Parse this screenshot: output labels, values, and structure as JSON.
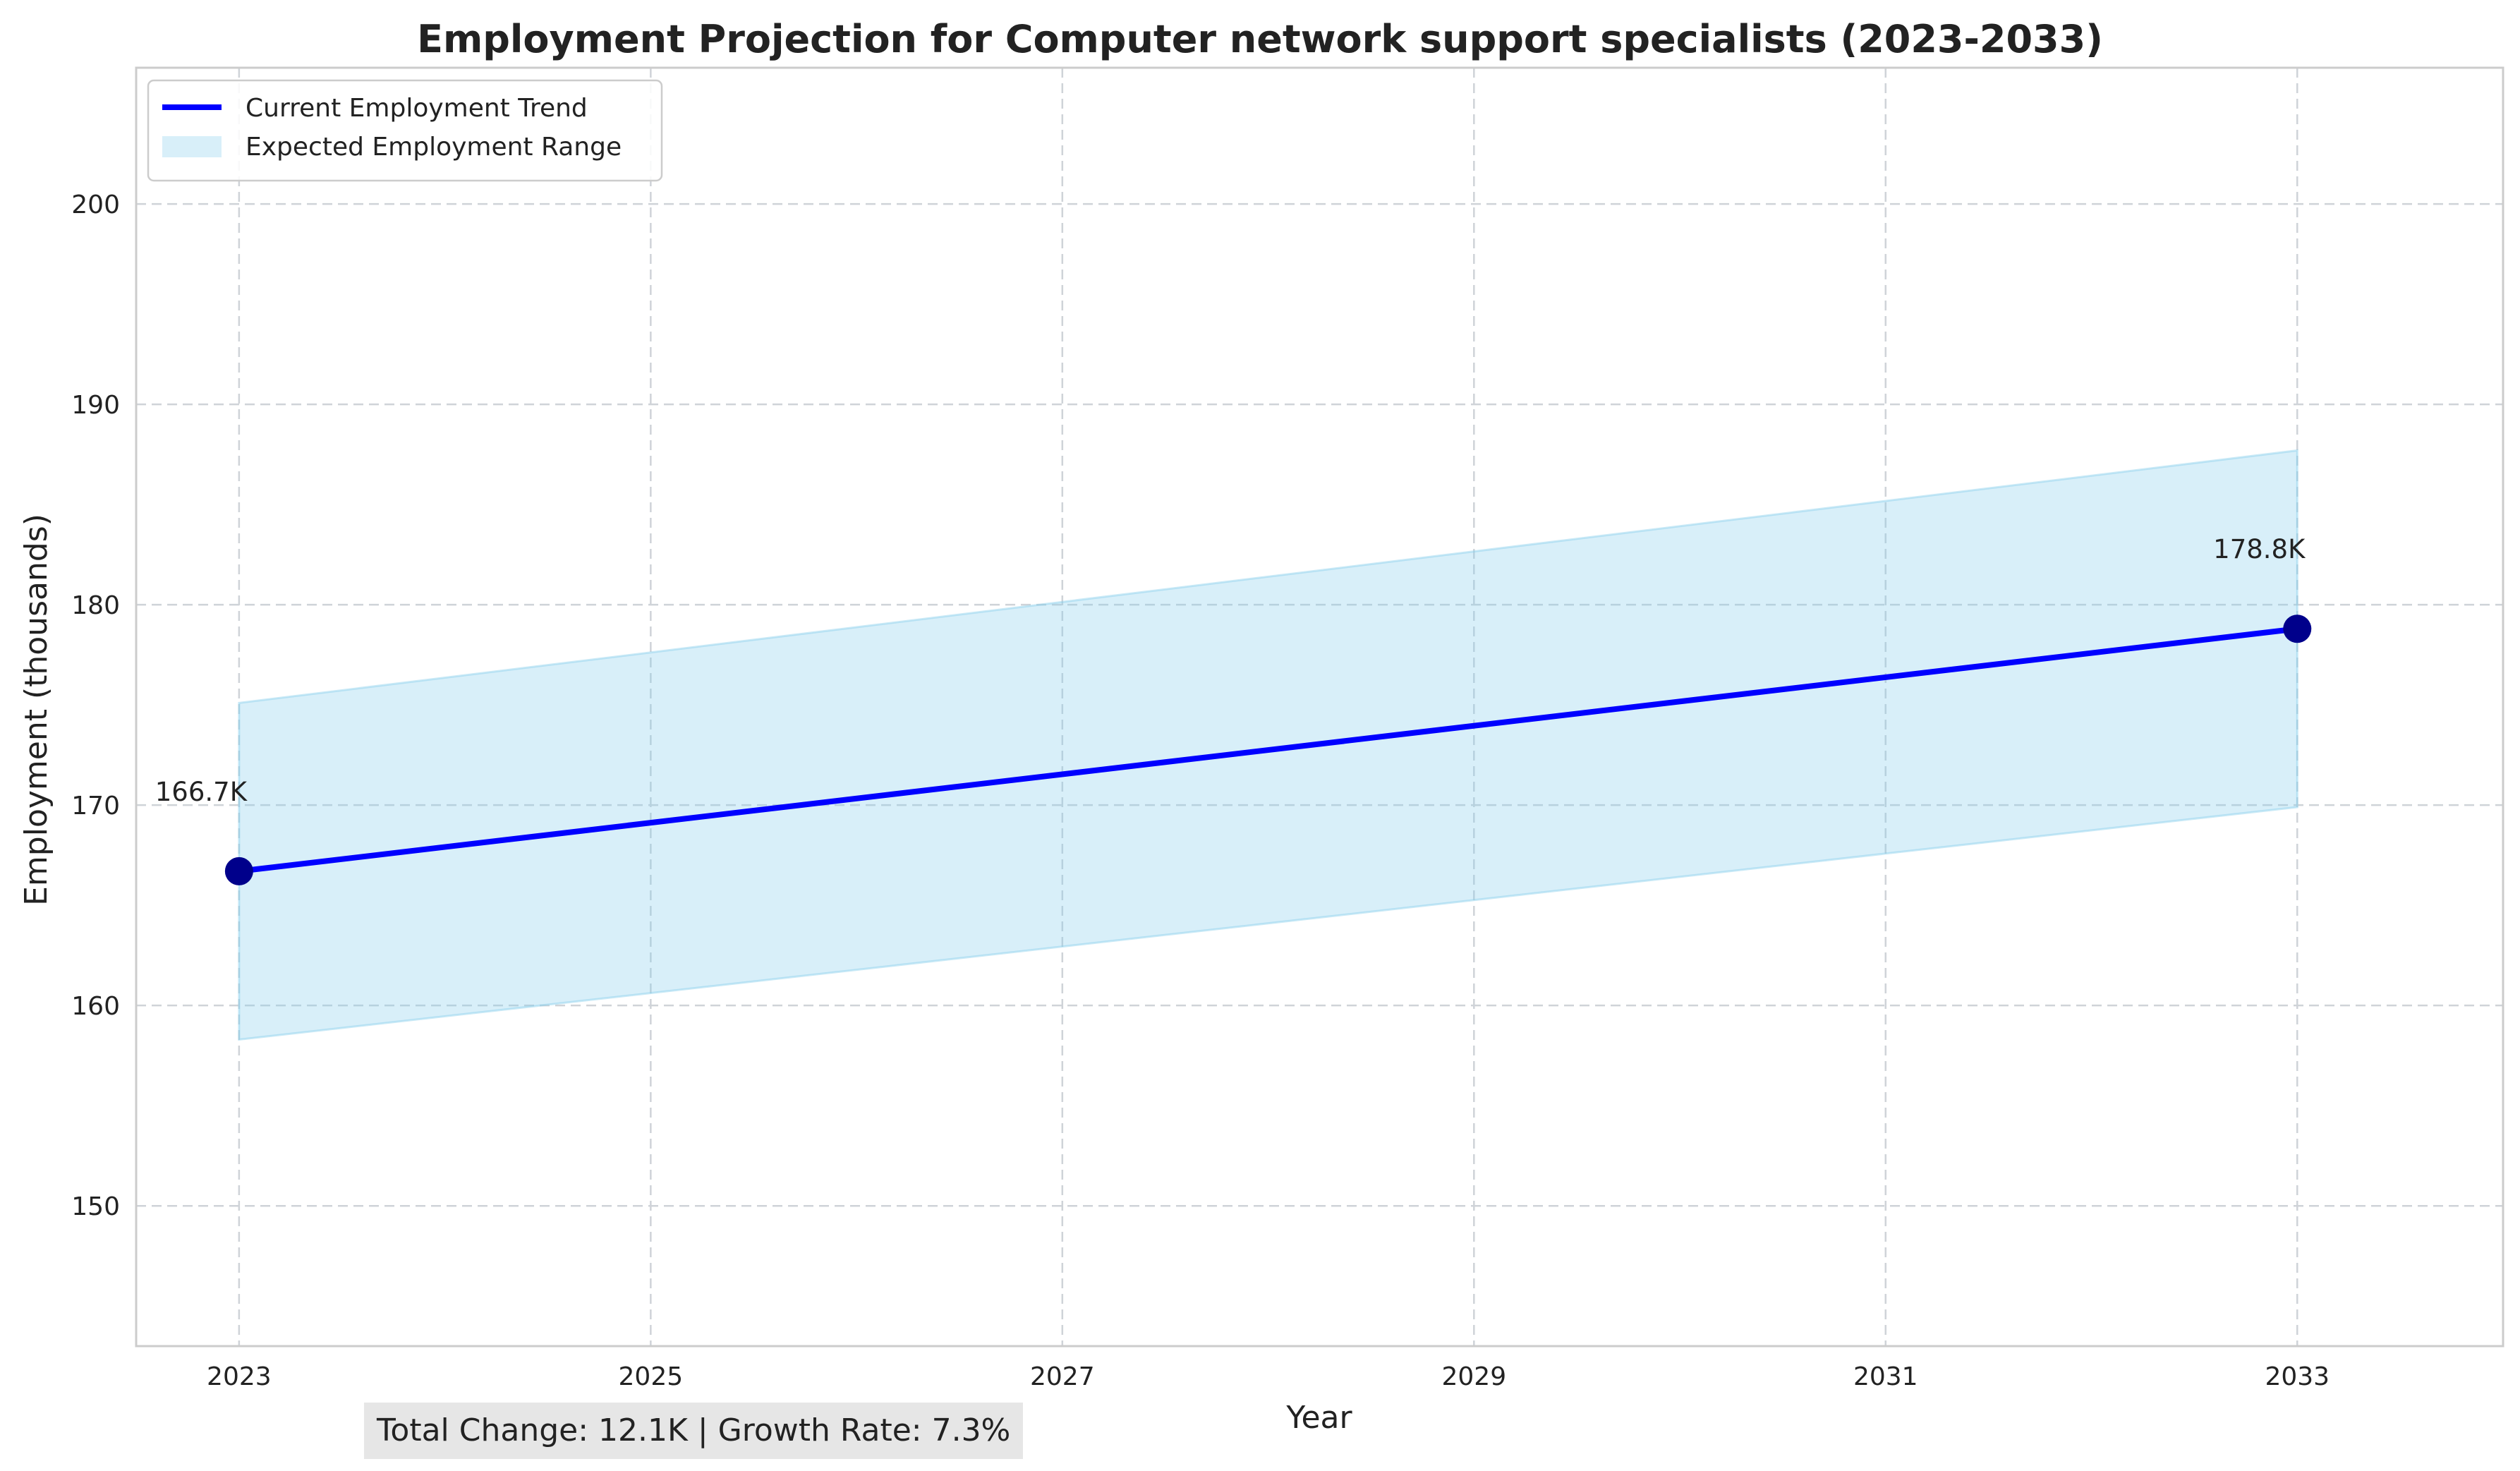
{
  "chart_data": {
    "type": "line",
    "title": "Employment Projection for Computer network support specialists (2023-2033)",
    "xlabel": "Year",
    "ylabel": "Employment (thousands)",
    "xlim": [
      2022.5,
      2034.0
    ],
    "ylim": [
      143.0,
      206.8
    ],
    "x_ticks": [
      2023,
      2025,
      2027,
      2029,
      2031,
      2033
    ],
    "y_ticks": [
      150,
      160,
      170,
      180,
      190,
      200
    ],
    "grid": true,
    "legend_position": "top-left",
    "series": [
      {
        "name": "Current Employment Trend",
        "color": "#0000ff",
        "marker_color": "#00008b",
        "x": [
          2023,
          2033
        ],
        "y": [
          166.7,
          178.8
        ],
        "point_labels": [
          "166.7K",
          "178.8K"
        ]
      }
    ],
    "band": {
      "name": "Expected Employment Range",
      "color": "#87ceeb",
      "opacity": 0.32,
      "x": [
        2023,
        2033
      ],
      "lower": [
        158.3,
        169.9
      ],
      "upper": [
        175.1,
        187.7
      ]
    },
    "annotation": "Total Change: 12.1K | Growth Rate: 7.3%"
  }
}
